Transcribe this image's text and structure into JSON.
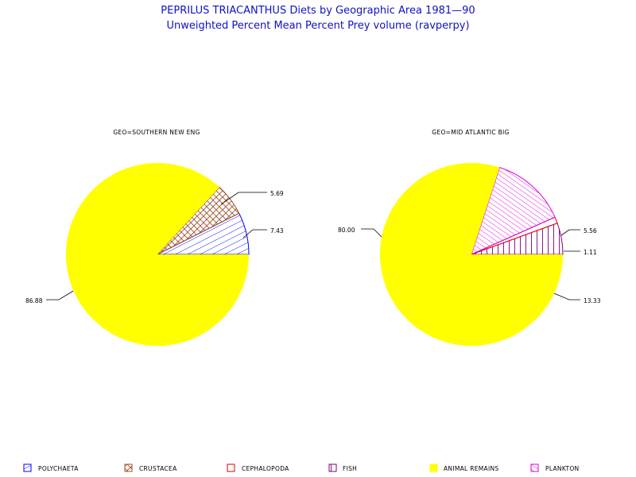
{
  "chart_data": [
    {
      "type": "pie",
      "title_lines": [
        "PEPRILUS TRIACANTHUS Diets by Geographic Area 1981—90",
        "Unweighted Percent Mean Percent Prey  volume (ravperpy)"
      ],
      "panel_title": "GEO=SOUTHERN NEW ENG",
      "slices": [
        {
          "category": "POLYCHAETA",
          "value": 7.43,
          "label": "7.43"
        },
        {
          "category": "CRUSTACEA",
          "value": 5.69,
          "label": "5.69"
        },
        {
          "category": "ANIMAL REMAINS",
          "value": 86.88,
          "label": "86.88"
        }
      ]
    },
    {
      "type": "pie",
      "panel_title": "GEO=MID ATLANTIC BIG",
      "slices": [
        {
          "category": "FISH",
          "value": 5.56,
          "label": "5.56"
        },
        {
          "category": "CEPHALOPODA",
          "value": 1.11,
          "label": "1.11"
        },
        {
          "category": "PLANKTON",
          "value": 13.33,
          "label": "13.33"
        },
        {
          "category": "ANIMAL REMAINS",
          "value": 80.0,
          "label": "80.00"
        }
      ]
    }
  ],
  "legend": [
    {
      "label": "POLYCHAETA",
      "color": "#0000ff",
      "pattern": "diag-right"
    },
    {
      "label": "CRUSTACEA",
      "color": "#a0522d",
      "pattern": "crosshatch"
    },
    {
      "label": "CEPHALOPODA",
      "color": "#e00000",
      "pattern": "empty"
    },
    {
      "label": "FISH",
      "color": "#800080",
      "pattern": "vertical"
    },
    {
      "label": "ANIMAL REMAINS",
      "color": "#ffff00",
      "pattern": "solid"
    },
    {
      "label": "PLANKTON",
      "color": "#e000e0",
      "pattern": "diag-left"
    }
  ]
}
